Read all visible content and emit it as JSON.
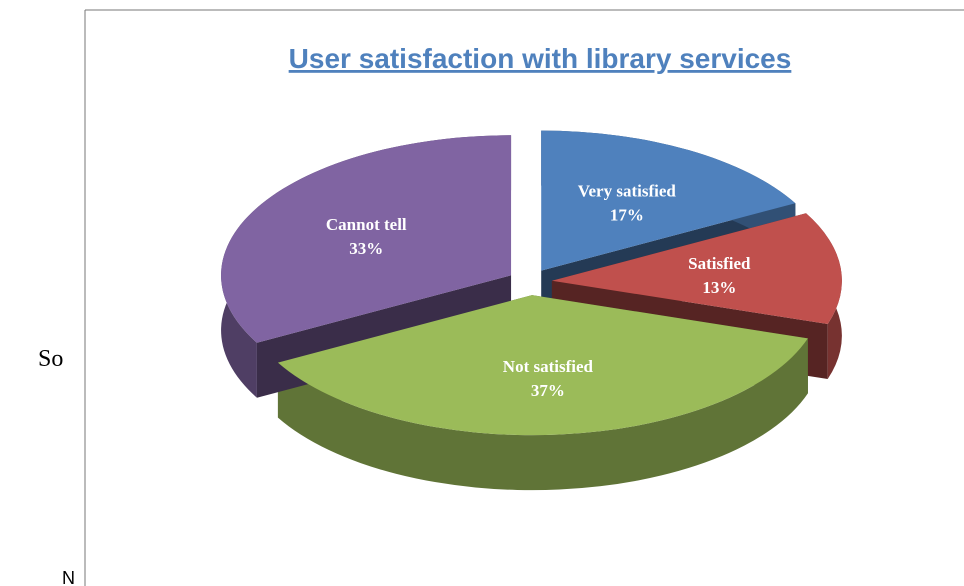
{
  "chart_data": {
    "type": "pie",
    "title": "User satisfaction with library services",
    "categories": [
      "Very satisfied",
      "Satisfied",
      "Not satisfied",
      "Cannot tell"
    ],
    "values": [
      17,
      13,
      37,
      33
    ],
    "value_labels": [
      "17%",
      "13%",
      "37%",
      "33%"
    ],
    "colors": [
      "#4f81bd",
      "#c0504d",
      "#9bbb59",
      "#8064a2"
    ]
  },
  "side_texts": [
    "So",
    "N"
  ]
}
